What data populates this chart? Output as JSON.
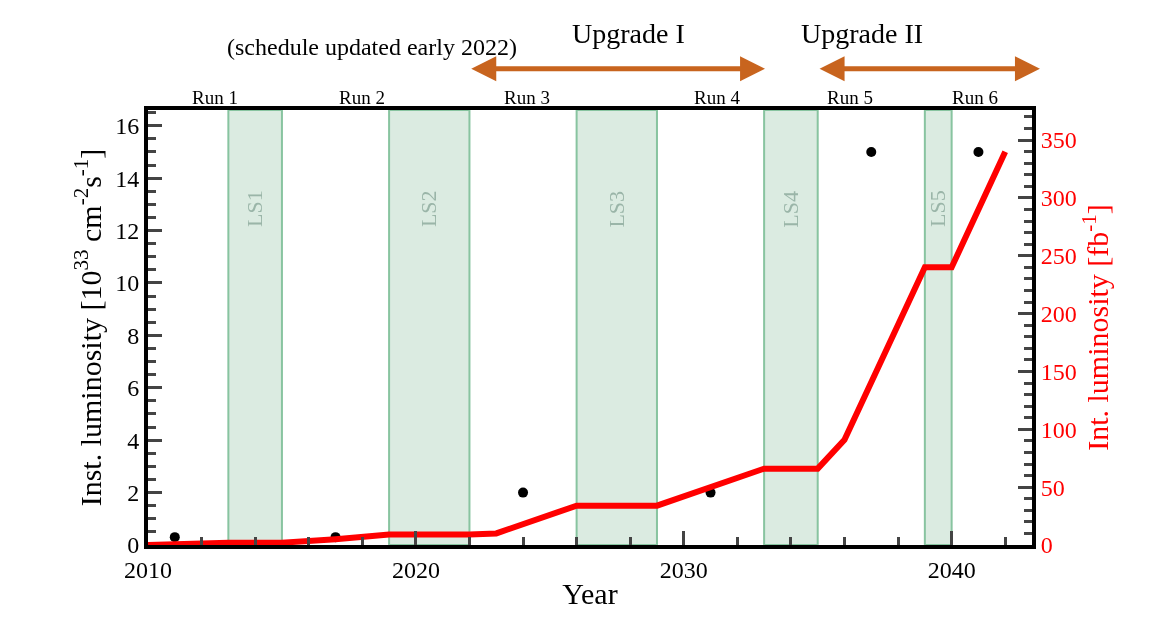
{
  "chart_data": {
    "type": "line",
    "xlabel": "Year",
    "ylabel": "Inst. luminosity [10$^{33}$ cm$^{-2}$s$^{-1}$]",
    "y2label": "Int. luminosity [fb$^{-1}$]",
    "xlim": [
      2010,
      2043
    ],
    "xticks": [
      2010,
      2020,
      2030,
      2040
    ],
    "ylim": [
      0,
      16.6
    ],
    "yticks": [
      0,
      2,
      4,
      6,
      8,
      10,
      12,
      14,
      16
    ],
    "y2lim": [
      0,
      376
    ],
    "y2ticks": [
      0,
      50,
      100,
      150,
      200,
      250,
      300,
      350
    ],
    "series": [
      {
        "axis": "y2",
        "color": "#ff0000",
        "x": [
          2010,
          2013,
          2015,
          2017,
          2019,
          2022,
          2023,
          2026,
          2029,
          2033,
          2035,
          2036,
          2039,
          2040,
          2042
        ],
        "values": [
          0,
          2,
          2,
          5,
          9,
          9,
          10,
          34,
          34,
          66,
          66,
          91,
          240,
          240,
          340
        ]
      },
      {
        "type": "scatter",
        "marker": "circle",
        "color": "#000000",
        "x": [
          2011,
          2017,
          2024,
          2031,
          2037,
          2041
        ],
        "values": [
          0.3,
          0.3,
          2,
          2,
          15,
          15
        ]
      }
    ],
    "grid": false,
    "bands": [
      {
        "axis": "x",
        "from": 2013,
        "to": 2015,
        "label": "LS1",
        "color": "#dbebe1"
      },
      {
        "axis": "x",
        "from": 2019,
        "to": 2022,
        "label": "LS2",
        "color": "#dbebe1"
      },
      {
        "axis": "x",
        "from": 2026,
        "to": 2029,
        "label": "LS3",
        "color": "#dbebe1"
      },
      {
        "axis": "x",
        "from": 2033,
        "to": 2035,
        "label": "LS4",
        "color": "#dbebe1"
      },
      {
        "axis": "x",
        "from": 2039,
        "to": 2040,
        "label": "LS5",
        "color": "#dbebe1"
      }
    ],
    "annotations": [
      "(schedule updated early 2022)",
      "Upgrade I",
      "Upgrade II",
      "Run 1",
      "Run 2",
      "Run 3",
      "Run 4",
      "Run 5",
      "Run 6"
    ]
  }
}
